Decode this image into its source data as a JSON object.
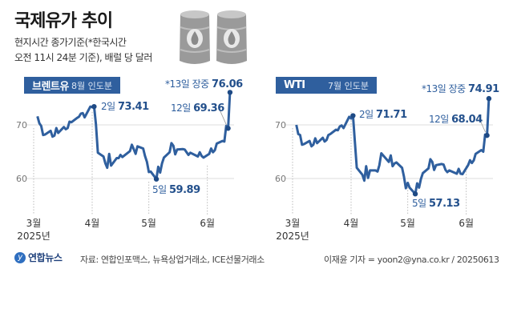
{
  "header": {
    "title": "국제유가 추이",
    "subtitle_line1": "현지시간 종가기준(*한국시간",
    "subtitle_line2": "오전 11시 24분 기준), 배럴 당 달러",
    "icon": "oil-barrels-icon"
  },
  "colors": {
    "line": "#2f5f9e",
    "badge": "#2f5f9e",
    "grid": "#dddddd",
    "barrel": "#9a9a9a"
  },
  "chart_data": [
    {
      "type": "line",
      "name": "브렌트유",
      "contract": "8월 인도분",
      "ylim": [
        55,
        77
      ],
      "yticks": [
        60,
        70
      ],
      "grid": true,
      "xticks": [
        "3월",
        "4월",
        "5월",
        "6월"
      ],
      "year_label": "2025년",
      "annotations": [
        {
          "date": "2025-04-02",
          "prefix": "2일",
          "value": "73.41"
        },
        {
          "date": "2025-05-05",
          "prefix": "5일",
          "value": "59.89"
        },
        {
          "date": "2025-06-12",
          "prefix": "12일",
          "value": "69.36"
        },
        {
          "date": "2025-06-13",
          "prefix": "*13일 장중",
          "value": "76.06"
        }
      ],
      "points": [
        [
          "2025-03-03",
          71.6
        ],
        [
          "2025-03-04",
          70.3
        ],
        [
          "2025-03-05",
          69.8
        ],
        [
          "2025-03-06",
          68.1
        ],
        [
          "2025-03-07",
          68.2
        ],
        [
          "2025-03-10",
          68.9
        ],
        [
          "2025-03-11",
          67.8
        ],
        [
          "2025-03-12",
          68.0
        ],
        [
          "2025-03-13",
          69.4
        ],
        [
          "2025-03-14",
          68.5
        ],
        [
          "2025-03-17",
          69.6
        ],
        [
          "2025-03-18",
          69.2
        ],
        [
          "2025-03-19",
          69.4
        ],
        [
          "2025-03-20",
          70.6
        ],
        [
          "2025-03-21",
          70.5
        ],
        [
          "2025-03-24",
          71.3
        ],
        [
          "2025-03-25",
          71.5
        ],
        [
          "2025-03-26",
          72.1
        ],
        [
          "2025-03-27",
          72.2
        ],
        [
          "2025-03-28",
          71.4
        ],
        [
          "2025-03-31",
          73.4
        ],
        [
          "2025-04-01",
          73.3
        ],
        [
          "2025-04-02",
          73.41
        ],
        [
          "2025-04-03",
          70.1
        ],
        [
          "2025-04-04",
          64.8
        ],
        [
          "2025-04-07",
          64.1
        ],
        [
          "2025-04-08",
          62.8
        ],
        [
          "2025-04-09",
          62.0
        ],
        [
          "2025-04-10",
          64.6
        ],
        [
          "2025-04-11",
          62.4
        ],
        [
          "2025-04-14",
          63.8
        ],
        [
          "2025-04-15",
          63.8
        ],
        [
          "2025-04-16",
          64.4
        ],
        [
          "2025-04-17",
          64.0
        ],
        [
          "2025-04-21",
          65.1
        ],
        [
          "2025-04-22",
          66.3
        ],
        [
          "2025-04-23",
          65.5
        ],
        [
          "2025-04-24",
          64.6
        ],
        [
          "2025-04-25",
          66.0
        ],
        [
          "2025-04-28",
          65.6
        ],
        [
          "2025-04-29",
          64.2
        ],
        [
          "2025-04-30",
          63.1
        ],
        [
          "2025-05-01",
          61.2
        ],
        [
          "2025-05-02",
          61.3
        ],
        [
          "2025-05-05",
          59.89
        ],
        [
          "2025-05-06",
          62.2
        ],
        [
          "2025-05-07",
          61.1
        ],
        [
          "2025-05-08",
          62.8
        ],
        [
          "2025-05-09",
          63.9
        ],
        [
          "2025-05-12",
          64.9
        ],
        [
          "2025-05-13",
          66.6
        ],
        [
          "2025-05-14",
          66.1
        ],
        [
          "2025-05-15",
          64.5
        ],
        [
          "2025-05-16",
          65.4
        ],
        [
          "2025-05-19",
          65.5
        ],
        [
          "2025-05-20",
          65.4
        ],
        [
          "2025-05-21",
          64.9
        ],
        [
          "2025-05-22",
          64.4
        ],
        [
          "2025-05-23",
          64.8
        ],
        [
          "2025-05-27",
          64.1
        ],
        [
          "2025-05-28",
          64.9
        ],
        [
          "2025-05-29",
          64.2
        ],
        [
          "2025-05-30",
          63.9
        ],
        [
          "2025-06-02",
          64.6
        ],
        [
          "2025-06-03",
          65.6
        ],
        [
          "2025-06-04",
          64.9
        ],
        [
          "2025-06-05",
          65.3
        ],
        [
          "2025-06-06",
          66.5
        ],
        [
          "2025-06-09",
          67.0
        ],
        [
          "2025-06-10",
          66.9
        ],
        [
          "2025-06-11",
          69.8
        ],
        [
          "2025-06-12",
          69.36
        ],
        [
          "2025-06-13",
          76.06
        ]
      ]
    },
    {
      "type": "line",
      "name": "WTI",
      "contract": "7월 인도분",
      "ylim": [
        55,
        77
      ],
      "yticks": [
        60,
        70
      ],
      "grid": true,
      "xticks": [
        "3월",
        "4월",
        "5월",
        "6월"
      ],
      "year_label": "2025년",
      "annotations": [
        {
          "date": "2025-04-02",
          "prefix": "2일",
          "value": "71.71"
        },
        {
          "date": "2025-05-05",
          "prefix": "5일",
          "value": "57.13"
        },
        {
          "date": "2025-06-12",
          "prefix": "12일",
          "value": "68.04"
        },
        {
          "date": "2025-06-13",
          "prefix": "*13일 장중",
          "value": "74.91"
        }
      ],
      "points": [
        [
          "2025-03-03",
          70.0
        ],
        [
          "2025-03-04",
          68.3
        ],
        [
          "2025-03-05",
          68.1
        ],
        [
          "2025-03-06",
          66.3
        ],
        [
          "2025-03-07",
          66.4
        ],
        [
          "2025-03-10",
          67.0
        ],
        [
          "2025-03-11",
          66.0
        ],
        [
          "2025-03-12",
          66.3
        ],
        [
          "2025-03-13",
          67.5
        ],
        [
          "2025-03-14",
          66.6
        ],
        [
          "2025-03-17",
          67.6
        ],
        [
          "2025-03-18",
          66.9
        ],
        [
          "2025-03-19",
          67.2
        ],
        [
          "2025-03-20",
          68.1
        ],
        [
          "2025-03-21",
          68.3
        ],
        [
          "2025-03-24",
          69.1
        ],
        [
          "2025-03-25",
          69.0
        ],
        [
          "2025-03-26",
          69.7
        ],
        [
          "2025-03-27",
          69.9
        ],
        [
          "2025-03-28",
          69.4
        ],
        [
          "2025-03-31",
          71.5
        ],
        [
          "2025-04-01",
          71.2
        ],
        [
          "2025-04-02",
          71.71
        ],
        [
          "2025-04-03",
          66.9
        ],
        [
          "2025-04-04",
          62.0
        ],
        [
          "2025-04-07",
          60.7
        ],
        [
          "2025-04-08",
          59.6
        ],
        [
          "2025-04-09",
          62.3
        ],
        [
          "2025-04-10",
          60.1
        ],
        [
          "2025-04-11",
          61.5
        ],
        [
          "2025-04-14",
          61.5
        ],
        [
          "2025-04-15",
          61.3
        ],
        [
          "2025-04-16",
          62.5
        ],
        [
          "2025-04-17",
          64.7
        ],
        [
          "2025-04-21",
          63.1
        ],
        [
          "2025-04-22",
          64.3
        ],
        [
          "2025-04-23",
          62.3
        ],
        [
          "2025-04-24",
          62.8
        ],
        [
          "2025-04-25",
          63.0
        ],
        [
          "2025-04-28",
          62.0
        ],
        [
          "2025-04-29",
          60.4
        ],
        [
          "2025-04-30",
          58.2
        ],
        [
          "2025-05-01",
          59.2
        ],
        [
          "2025-05-02",
          58.3
        ],
        [
          "2025-05-05",
          57.13
        ],
        [
          "2025-05-06",
          59.1
        ],
        [
          "2025-05-07",
          58.3
        ],
        [
          "2025-05-08",
          59.9
        ],
        [
          "2025-05-09",
          61.0
        ],
        [
          "2025-05-12",
          61.9
        ],
        [
          "2025-05-13",
          63.6
        ],
        [
          "2025-05-14",
          63.1
        ],
        [
          "2025-05-15",
          61.6
        ],
        [
          "2025-05-16",
          62.5
        ],
        [
          "2025-05-19",
          62.7
        ],
        [
          "2025-05-20",
          62.6
        ],
        [
          "2025-05-21",
          61.6
        ],
        [
          "2025-05-22",
          61.2
        ],
        [
          "2025-05-23",
          61.5
        ],
        [
          "2025-05-27",
          60.9
        ],
        [
          "2025-05-28",
          61.8
        ],
        [
          "2025-05-29",
          60.9
        ],
        [
          "2025-05-30",
          60.8
        ],
        [
          "2025-06-02",
          62.5
        ],
        [
          "2025-06-03",
          63.4
        ],
        [
          "2025-06-04",
          62.9
        ],
        [
          "2025-06-05",
          63.4
        ],
        [
          "2025-06-06",
          64.6
        ],
        [
          "2025-06-09",
          65.3
        ],
        [
          "2025-06-10",
          65.0
        ],
        [
          "2025-06-11",
          68.2
        ],
        [
          "2025-06-12",
          68.04
        ],
        [
          "2025-06-13",
          74.91
        ]
      ]
    }
  ],
  "footer": {
    "logo": "연합뉴스",
    "source": "자료: 연합인포맥스, 뉴욕상업거래소, ICE선물거래소",
    "credit": "이재윤 기자 = yoon2@yna.co.kr / 20250613"
  }
}
